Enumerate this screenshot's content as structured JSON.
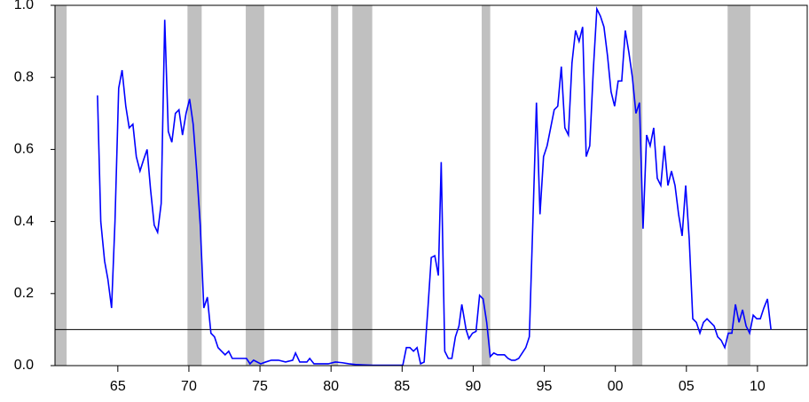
{
  "chart_data": {
    "type": "line",
    "x": [
      1963.57,
      1963.8,
      1964.07,
      1964.3,
      1964.56,
      1964.8,
      1965.06,
      1965.3,
      1965.56,
      1965.8,
      1966.06,
      1966.3,
      1966.56,
      1966.8,
      1967.06,
      1967.3,
      1967.56,
      1967.8,
      1968.05,
      1968.3,
      1968.55,
      1968.8,
      1969.05,
      1969.3,
      1969.55,
      1969.8,
      1970.05,
      1970.3,
      1970.55,
      1970.8,
      1971.05,
      1971.3,
      1971.55,
      1971.8,
      1972.05,
      1972.3,
      1972.55,
      1972.8,
      1973.05,
      1973.55,
      1974.05,
      1974.3,
      1974.55,
      1975.05,
      1975.4,
      1975.8,
      1976.3,
      1976.8,
      1977.3,
      1977.5,
      1977.8,
      1978.3,
      1978.5,
      1978.8,
      1979.3,
      1979.8,
      1980.3,
      1980.8,
      1981.25,
      1981.75,
      1982.25,
      1982.9,
      1984.1,
      1985.05,
      1985.3,
      1985.55,
      1985.8,
      1986.05,
      1986.3,
      1986.55,
      1986.8,
      1987.05,
      1987.3,
      1987.55,
      1987.75,
      1988.0,
      1988.25,
      1988.5,
      1988.75,
      1989.0,
      1989.2,
      1989.5,
      1989.7,
      1989.95,
      1990.2,
      1990.45,
      1990.7,
      1990.95,
      1991.2,
      1991.45,
      1991.7,
      1992.2,
      1992.45,
      1992.7,
      1992.95,
      1993.2,
      1993.45,
      1993.7,
      1993.95,
      1994.2,
      1994.45,
      1994.7,
      1994.95,
      1995.2,
      1995.45,
      1995.7,
      1995.95,
      1996.2,
      1996.45,
      1996.7,
      1996.95,
      1997.2,
      1997.45,
      1997.7,
      1997.95,
      1998.2,
      1998.45,
      1998.7,
      1998.95,
      1999.2,
      1999.45,
      1999.7,
      1999.95,
      2000.2,
      2000.45,
      2000.7,
      2000.95,
      2001.2,
      2001.45,
      2001.7,
      2001.95,
      2002.2,
      2002.45,
      2002.7,
      2002.95,
      2003.2,
      2003.45,
      2003.7,
      2003.95,
      2004.2,
      2004.45,
      2004.7,
      2004.95,
      2005.2,
      2005.45,
      2005.7,
      2005.95,
      2006.2,
      2006.45,
      2006.7,
      2006.95,
      2007.2,
      2007.45,
      2007.7,
      2007.95,
      2008.2,
      2008.45,
      2008.7,
      2008.95,
      2009.2,
      2009.45,
      2009.7,
      2009.95,
      2010.2,
      2010.45,
      2010.7,
      2010.95
    ],
    "series": [
      {
        "color": "#0000ff",
        "values": [
          0.75,
          0.4,
          0.29,
          0.24,
          0.16,
          0.4,
          0.77,
          0.82,
          0.72,
          0.66,
          0.67,
          0.58,
          0.54,
          0.57,
          0.6,
          0.49,
          0.39,
          0.37,
          0.45,
          0.96,
          0.65,
          0.62,
          0.7,
          0.71,
          0.64,
          0.7,
          0.74,
          0.67,
          0.54,
          0.39,
          0.16,
          0.19,
          0.09,
          0.08,
          0.05,
          0.04,
          0.03,
          0.04,
          0.02,
          0.02,
          0.02,
          0.005,
          0.015,
          0.005,
          0.01,
          0.015,
          0.015,
          0.01,
          0.015,
          0.035,
          0.01,
          0.01,
          0.02,
          0.005,
          0.005,
          0.005,
          0.01,
          0.008,
          0.005,
          0.003,
          0.002,
          0.001,
          0.001,
          0.001,
          0.05,
          0.05,
          0.04,
          0.05,
          0.005,
          0.01,
          0.15,
          0.3,
          0.305,
          0.25,
          0.565,
          0.04,
          0.02,
          0.02,
          0.08,
          0.11,
          0.17,
          0.1,
          0.075,
          0.09,
          0.095,
          0.195,
          0.185,
          0.12,
          0.025,
          0.035,
          0.03,
          0.03,
          0.02,
          0.015,
          0.015,
          0.02,
          0.035,
          0.05,
          0.08,
          0.4,
          0.73,
          0.42,
          0.58,
          0.61,
          0.66,
          0.71,
          0.72,
          0.83,
          0.66,
          0.64,
          0.84,
          0.93,
          0.9,
          0.94,
          0.58,
          0.61,
          0.82,
          0.99,
          0.97,
          0.94,
          0.86,
          0.76,
          0.72,
          0.79,
          0.79,
          0.93,
          0.87,
          0.8,
          0.7,
          0.73,
          0.38,
          0.64,
          0.61,
          0.66,
          0.52,
          0.5,
          0.61,
          0.5,
          0.54,
          0.5,
          0.42,
          0.36,
          0.5,
          0.35,
          0.13,
          0.12,
          0.09,
          0.12,
          0.13,
          0.12,
          0.11,
          0.08,
          0.07,
          0.05,
          0.09,
          0.09,
          0.17,
          0.12,
          0.155,
          0.11,
          0.09,
          0.14,
          0.13,
          0.13,
          0.16,
          0.185,
          0.1
        ]
      }
    ],
    "xlim": [
      1960.58,
      2013.5
    ],
    "xticks": [
      {
        "value": 1965,
        "label": "65"
      },
      {
        "value": 1970,
        "label": "70"
      },
      {
        "value": 1975,
        "label": "75"
      },
      {
        "value": 1980,
        "label": "80"
      },
      {
        "value": 1985,
        "label": "85"
      },
      {
        "value": 1990,
        "label": "90"
      },
      {
        "value": 1995,
        "label": "95"
      },
      {
        "value": 2000,
        "label": "00"
      },
      {
        "value": 2005,
        "label": "05"
      },
      {
        "value": 2010,
        "label": "10"
      }
    ],
    "ylim": [
      0,
      1
    ],
    "yticks": [
      {
        "value": 0,
        "label": "0.0"
      },
      0.2,
      0.4,
      0.6,
      0.8,
      {
        "value": 1,
        "label": "1.0"
      }
    ],
    "shaded_periods": [
      [
        1960.58,
        1961.4
      ],
      [
        1969.9,
        1970.9
      ],
      [
        1974.0,
        1975.3
      ],
      [
        1980.0,
        1980.5
      ],
      [
        1981.5,
        1982.9
      ],
      [
        1990.6,
        1991.2
      ],
      [
        2001.2,
        2001.9
      ],
      [
        2007.9,
        2009.5
      ]
    ],
    "shade_color": "#c0c0c0",
    "hline": 0.1
  }
}
